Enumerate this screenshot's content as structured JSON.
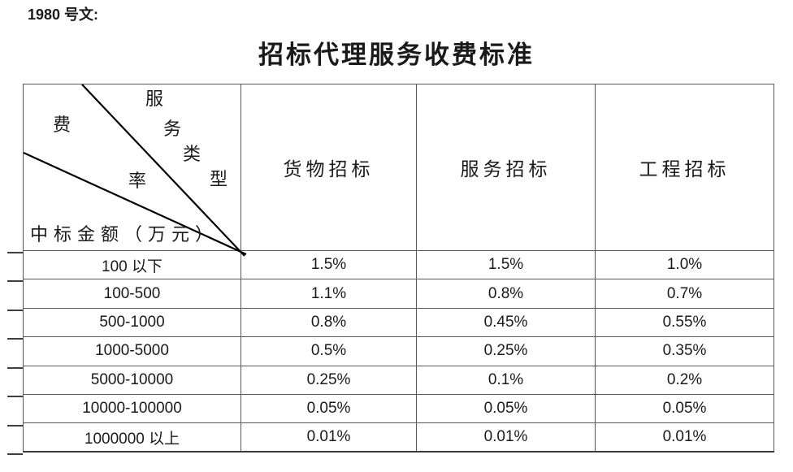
{
  "doc": {
    "note": "1980 号文:",
    "title": "招标代理服务收费标准"
  },
  "table": {
    "corner": {
      "fee_rate_chars": [
        "费",
        "率"
      ],
      "service_type_chars": [
        "服",
        "务",
        "类",
        "型"
      ],
      "amount_label": "中标金额（万元）"
    },
    "columns": [
      "货物招标",
      "服务招标",
      "工程招标"
    ],
    "rows": [
      {
        "label": "100 以下",
        "values": [
          "1.5%",
          "1.5%",
          "1.0%"
        ]
      },
      {
        "label": "100-500",
        "values": [
          "1.1%",
          "0.8%",
          "0.7%"
        ]
      },
      {
        "label": "500-1000",
        "values": [
          "0.8%",
          "0.45%",
          "0.55%"
        ]
      },
      {
        "label": "1000-5000",
        "values": [
          "0.5%",
          "0.25%",
          "0.35%"
        ]
      },
      {
        "label": "5000-10000",
        "values": [
          "0.25%",
          "0.1%",
          "0.2%"
        ]
      },
      {
        "label": "10000-100000",
        "values": [
          "0.05%",
          "0.05%",
          "0.05%"
        ]
      },
      {
        "label": "1000000 以上",
        "values": [
          "0.01%",
          "0.01%",
          "0.01%"
        ]
      }
    ],
    "colors": {
      "border": "#595959",
      "diagonal": "#000000",
      "text": "#1a1a1a"
    }
  }
}
